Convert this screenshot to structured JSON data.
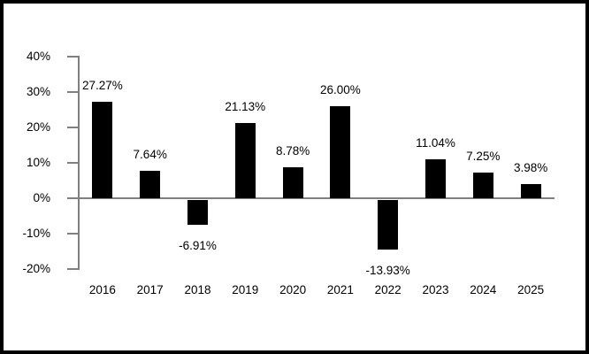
{
  "chart_data": {
    "type": "bar",
    "title": "",
    "xlabel": "",
    "ylabel": "",
    "categories": [
      "2016",
      "2017",
      "2018",
      "2019",
      "2020",
      "2021",
      "2022",
      "2023",
      "2024",
      "2025"
    ],
    "values": [
      27.27,
      7.64,
      -6.91,
      21.13,
      8.78,
      26.0,
      -13.93,
      11.04,
      7.25,
      3.98
    ],
    "value_labels": [
      "27.27%",
      "7.64%",
      "-6.91%",
      "21.13%",
      "8.78%",
      "26.00%",
      "-13.93%",
      "11.04%",
      "7.25%",
      "3.98%"
    ],
    "ytick_labels": [
      "40%",
      "30%",
      "20%",
      "10%",
      "0%",
      "-10%",
      "-20%"
    ],
    "ytick_values": [
      40,
      30,
      20,
      10,
      0,
      -10,
      -20
    ],
    "ylim": [
      -20,
      40
    ],
    "grid": false,
    "legend": false,
    "bar_color": "#000000",
    "axis_color": "#808080",
    "text_color": "#000000",
    "border_color": "#000000"
  }
}
